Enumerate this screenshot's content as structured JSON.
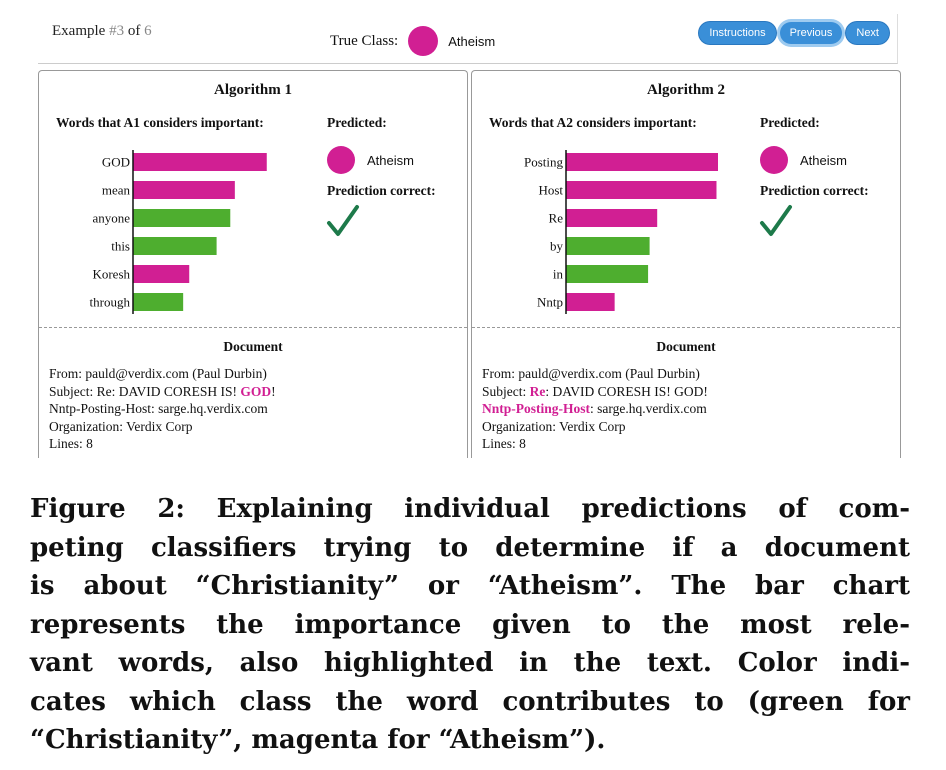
{
  "header": {
    "example_prefix": "Example ",
    "example_current": "#3",
    "example_of": " of ",
    "example_total": "6",
    "true_class_label": "True Class:",
    "true_class_name": "Atheism",
    "true_class_color": "#d11f93",
    "buttons": {
      "instructions": "Instructions",
      "previous": "Previous",
      "next": "Next"
    }
  },
  "colors": {
    "atheism": "#d11f93",
    "christianity": "#4eae2f",
    "check": "#1d7a4a"
  },
  "panels": [
    {
      "title": "Algorithm 1",
      "words_title": "Words that A1 considers important:",
      "predicted_title": "Predicted:",
      "predicted_class": "Atheism",
      "correct_title": "Prediction correct:",
      "correct_icon": "check-icon",
      "document_title": "Document",
      "doc": {
        "from": "From: pauld@verdix.com (Paul Durbin)",
        "subject_prefix": "Subject: Re: DAVID CORESH IS! ",
        "subject_hl": "GOD",
        "subject_suffix": "!",
        "nntp_hl": "",
        "nntp_rest": "Nntp-Posting-Host: sarge.hq.verdix.com",
        "org": "Organization: Verdix Corp",
        "lines": "Lines: 8"
      }
    },
    {
      "title": "Algorithm 2",
      "words_title": "Words that A2 considers important:",
      "predicted_title": "Predicted:",
      "predicted_class": "Atheism",
      "correct_title": "Prediction correct:",
      "correct_icon": "check-icon",
      "document_title": "Document",
      "doc": {
        "from": "From: pauld@verdix.com (Paul Durbin)",
        "subject_pre": "Subject: ",
        "subject_hl": "Re",
        "subject_post": ": DAVID CORESH IS! GOD!",
        "nntp_hl": "Nntp-Posting-Host",
        "nntp_rest": ": sarge.hq.verdix.com",
        "org": "Organization: Verdix Corp",
        "lines": "Lines: 8"
      }
    }
  ],
  "chart_data": [
    {
      "type": "bar",
      "orientation": "horizontal",
      "categories": [
        "GOD",
        "mean",
        "anyone",
        "this",
        "Koresh",
        "through"
      ],
      "values": [
        0.88,
        0.67,
        0.64,
        0.55,
        0.37,
        0.33
      ],
      "classes": [
        "atheism",
        "atheism",
        "christianity",
        "christianity",
        "atheism",
        "christianity"
      ]
    },
    {
      "type": "bar",
      "orientation": "horizontal",
      "categories": [
        "Posting",
        "Host",
        "Re",
        "by",
        "in",
        "Nntp"
      ],
      "values": [
        1.0,
        0.99,
        0.6,
        0.55,
        0.54,
        0.32
      ],
      "classes": [
        "atheism",
        "atheism",
        "atheism",
        "christianity",
        "christianity",
        "atheism"
      ]
    }
  ],
  "caption": {
    "lines": [
      "Figure 2: Explaining individual predictions of com-",
      "peting classifiers trying to determine if a document",
      "is about “Christianity” or “Atheism”. The bar chart",
      "represents the importance given to the most rele-",
      "vant words, also highlighted in the text. Color indi-",
      "cates which class the word contributes to (green for",
      "“Christianity”, magenta for “Atheism”)."
    ]
  }
}
